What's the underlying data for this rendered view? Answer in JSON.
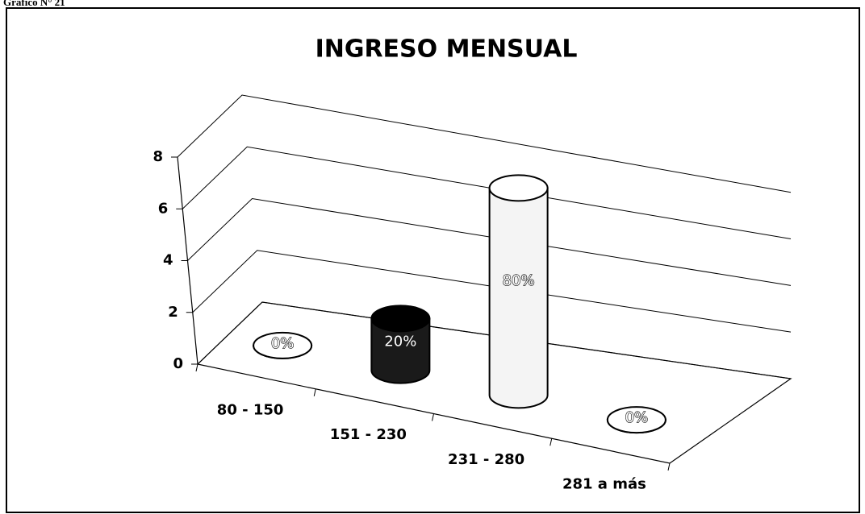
{
  "chart_data": {
    "type": "cylinder",
    "caption": "Gráfico N° 21",
    "title": "INGRESO MENSUAL",
    "categories": [
      "80 - 150",
      "151 - 230",
      "231 - 280",
      "281 a más"
    ],
    "values": [
      0,
      2,
      8,
      0
    ],
    "value_labels": [
      "0%",
      "20%",
      "80%",
      "0%"
    ],
    "colors": [
      "#ffffff",
      "#1a1a1a",
      "#f4f4f4",
      "#ffffff"
    ],
    "ylim": [
      0,
      8
    ],
    "yticks": [
      0,
      2,
      4,
      6,
      8
    ],
    "grid": true
  }
}
